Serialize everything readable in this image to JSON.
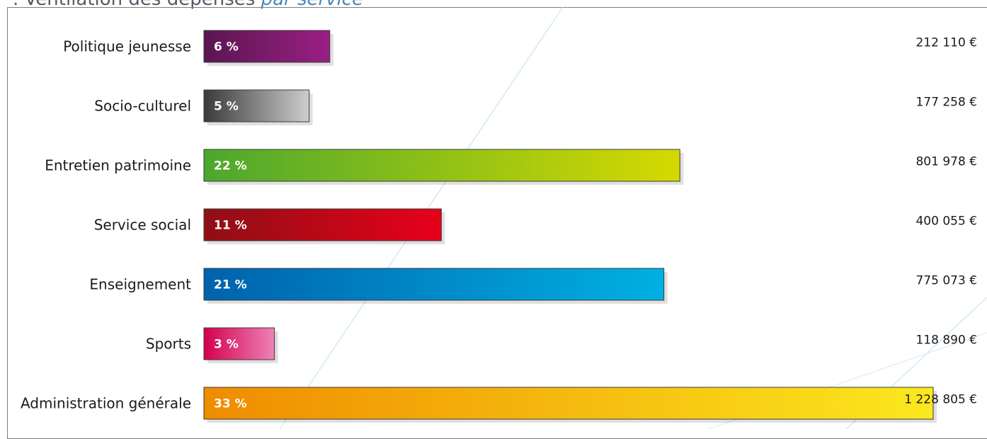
{
  "title": {
    "prefix": ". Ventilation des dépenses",
    "emphasis": "par service"
  },
  "chart_data": {
    "type": "bar",
    "orientation": "horizontal",
    "title": ". Ventilation des dépenses par service",
    "categories": [
      "Politique jeunesse",
      "Socio-culturel",
      "Entretien patrimoine",
      "Service social",
      "Enseignement",
      "Sports",
      "Administration générale"
    ],
    "values": [
      212110,
      177258,
      801978,
      400055,
      775073,
      118890,
      1228805
    ],
    "percent_labels": [
      "6 %",
      "5 %",
      "22 %",
      "11 %",
      "21 %",
      "3 %",
      "33 %"
    ],
    "value_labels": [
      "212 110 €",
      "177 258 €",
      "801 978 €",
      "400 055 €",
      "775 073 €",
      "118 890 €",
      "1 228 805 €"
    ],
    "colors": [
      [
        "#5a1650",
        "#9a1f84"
      ],
      [
        "#3a3a3a",
        "#cdcdcd"
      ],
      [
        "#4ca72e",
        "#d6d900"
      ],
      [
        "#8e0f15",
        "#e8001a"
      ],
      [
        "#0062ad",
        "#00b0e3"
      ],
      [
        "#d4004e",
        "#ed82b6"
      ],
      [
        "#ef8c00",
        "#fbe81e"
      ]
    ],
    "xlim": [
      0,
      1228805
    ],
    "grid": false,
    "legend": "none"
  }
}
